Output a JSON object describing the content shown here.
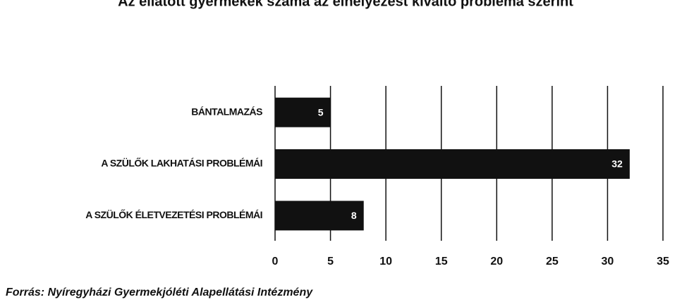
{
  "chart_data": {
    "type": "bar",
    "orientation": "horizontal",
    "title": "Az ellátott gyermekek száma az elhelyezést kiváltó probléma szerint",
    "categories": [
      "BÁNTALMAZÁS",
      "A SZÜLŐK LAKHATÁSI PROBLÉMÁI",
      "A SZÜLŐK ÉLETVEZETÉSI PROBLÉMÁI"
    ],
    "values": [
      5,
      32,
      8
    ],
    "color": "#111111",
    "xlim": [
      0,
      35
    ],
    "xticks": [
      0,
      5,
      10,
      15,
      20,
      25,
      30,
      35
    ],
    "grid": true,
    "source": "Forrás: Nyíregyházi Gyermekjóléti Alapellátási Intézmény"
  }
}
